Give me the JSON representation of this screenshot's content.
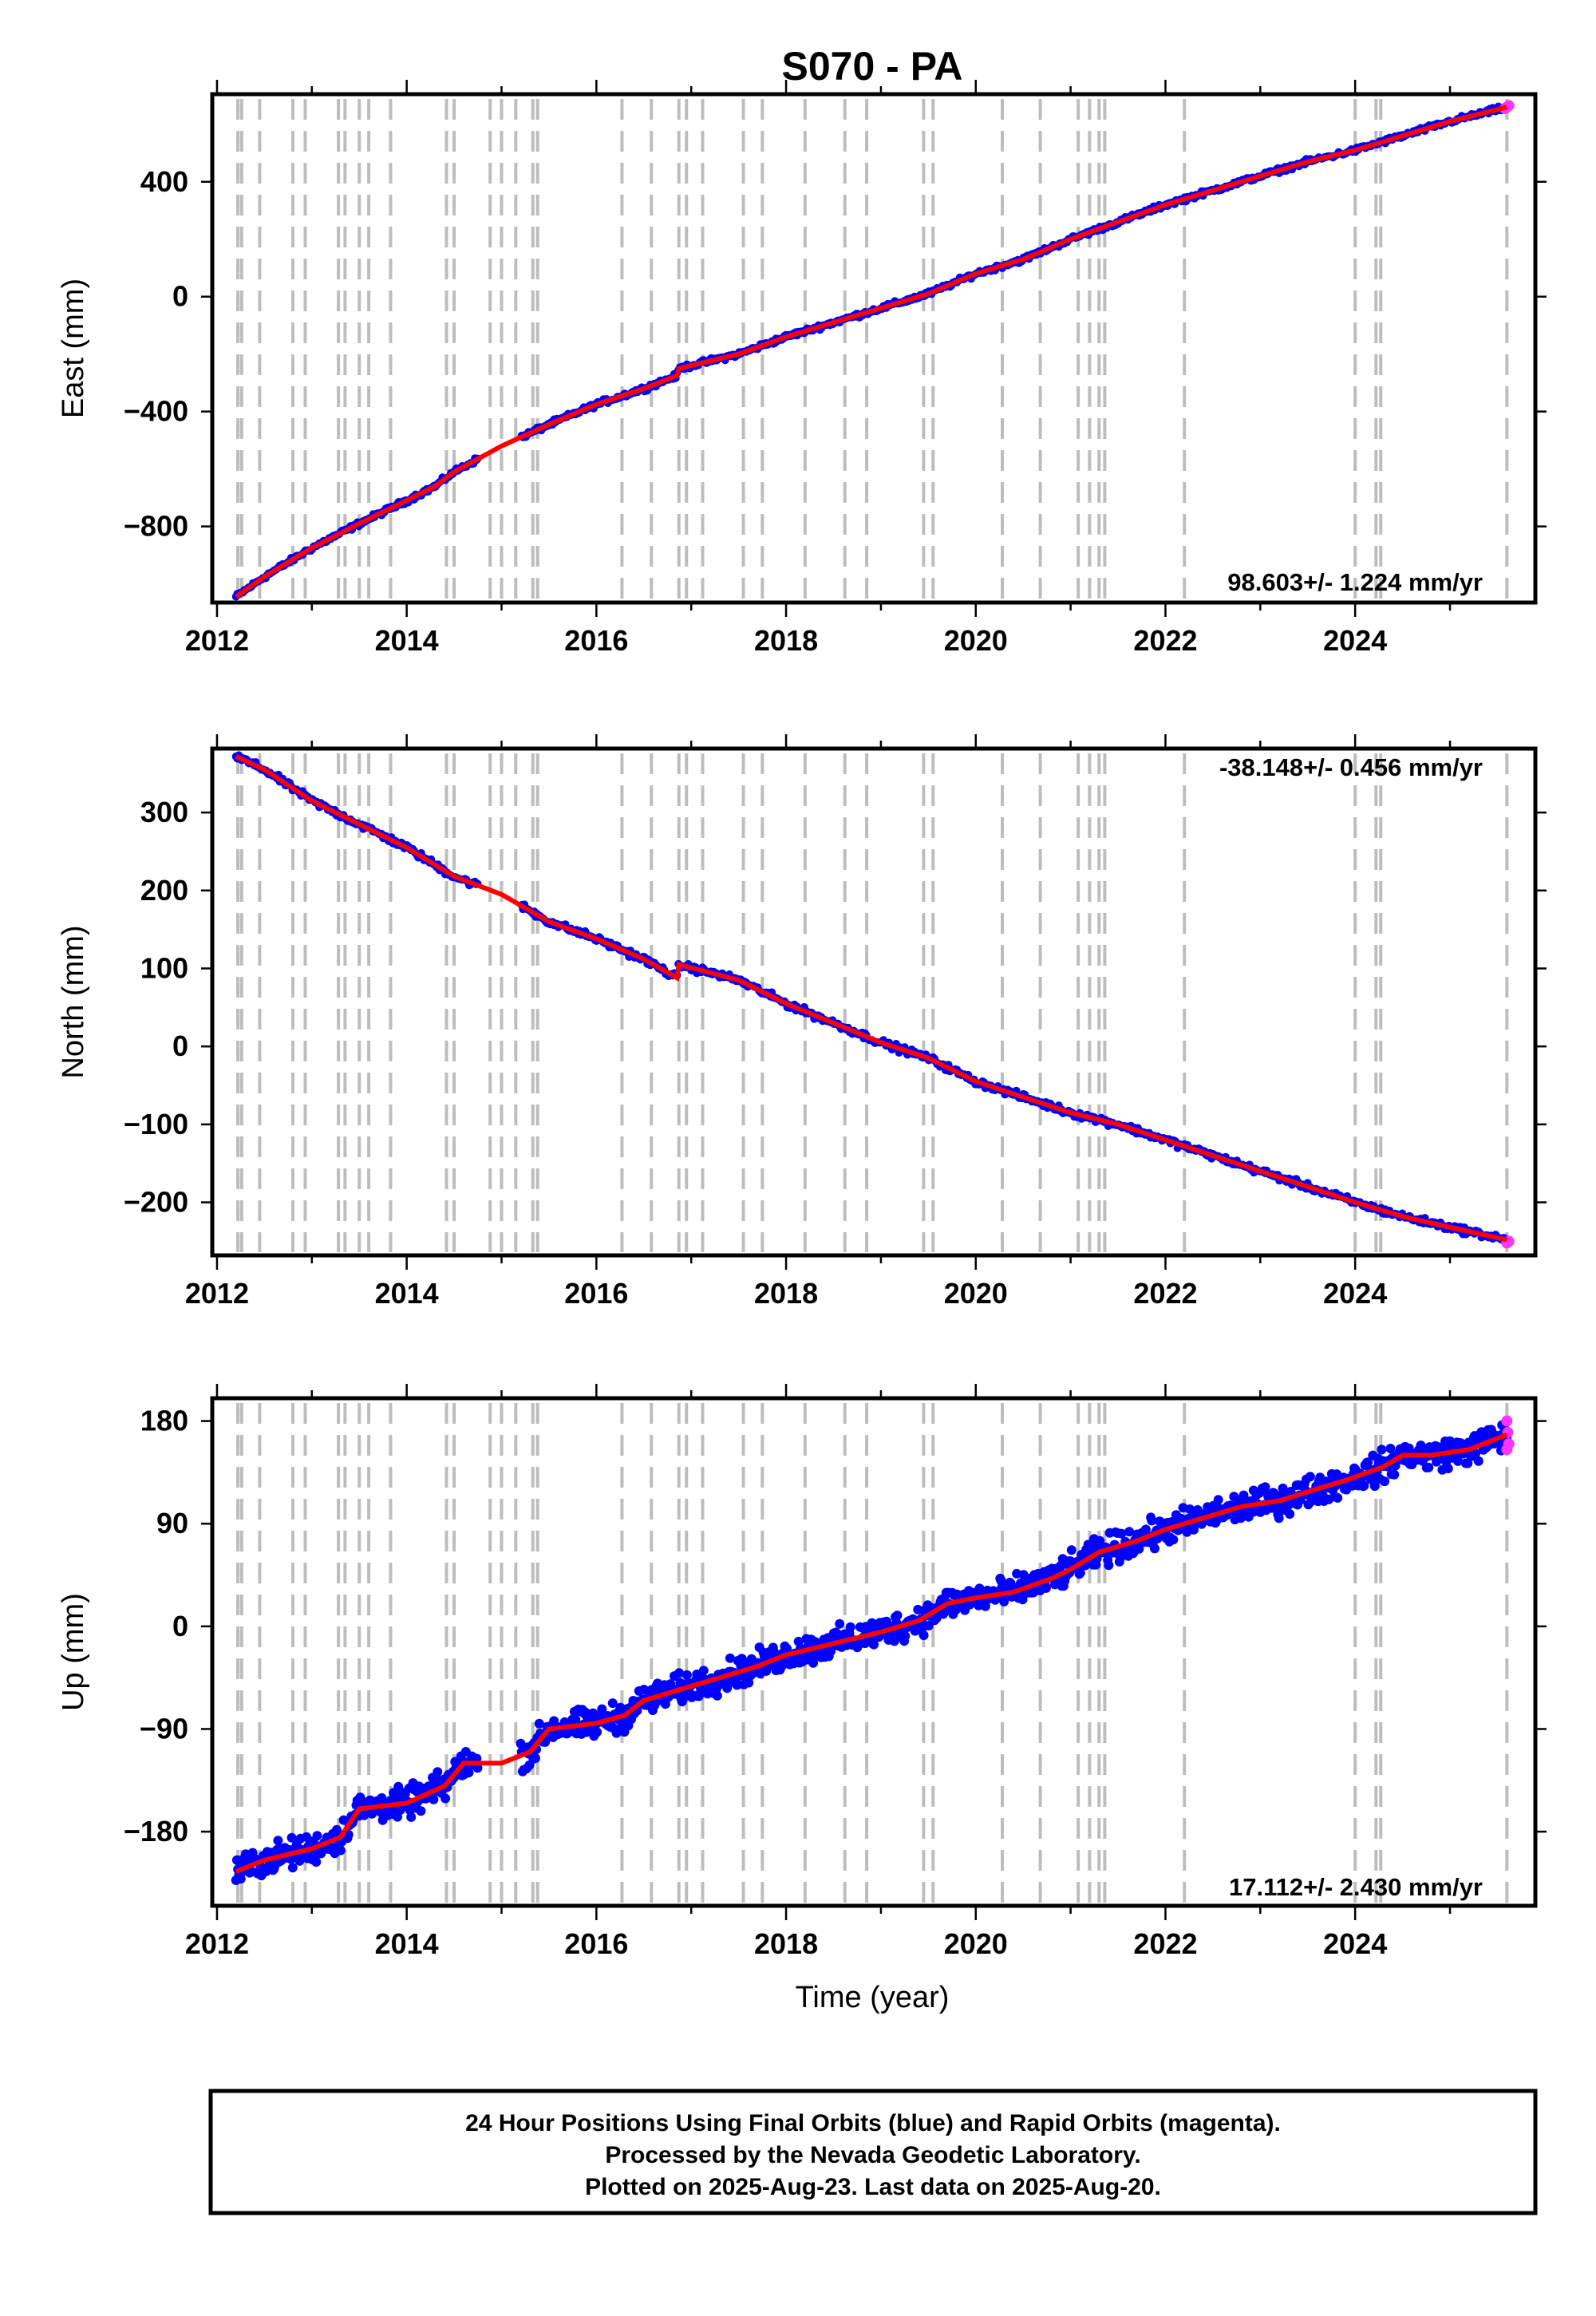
{
  "title": "S070 - PA",
  "x_axis_label": "Time (year)",
  "footer": {
    "line1": "24 Hour Positions Using Final Orbits (blue) and Rapid Orbits (magenta).",
    "line2": "Processed by the Nevada Geodetic Laboratory.",
    "line3": "Plotted on 2025-Aug-23. Last data on 2025-Aug-20."
  },
  "colors": {
    "final": "#0000ff",
    "rapid": "#ff33ff",
    "model": "#ff0000",
    "events": "#bdbdbd"
  },
  "chart_data": [
    {
      "type": "scatter",
      "name": "east",
      "ylabel": "East (mm)",
      "rate_label": "98.603+/- 1.224 mm/yr",
      "xlim": [
        2011.95,
        2025.9
      ],
      "ylim": [
        -1065,
        705
      ],
      "yticks": [
        400,
        0,
        -400,
        -800
      ],
      "ytick_labels": [
        "400",
        "0",
        "−400",
        "−800"
      ],
      "xticks": [
        2012,
        2014,
        2016,
        2018,
        2020,
        2022,
        2024
      ],
      "xtick_labels": [
        "2012",
        "2014",
        "2016",
        "2018",
        "2020",
        "2022",
        "2024"
      ],
      "trend_x": [
        2012.2,
        2012.5,
        2013.0,
        2013.5,
        2014.0,
        2014.3,
        2014.5,
        2015.0,
        2015.5,
        2016.0,
        2016.5,
        2016.85,
        2016.87,
        2017.5,
        2018.0,
        2018.5,
        2019.0,
        2019.5,
        2020.0,
        2020.5,
        2021.0,
        2021.5,
        2022.0,
        2022.5,
        2023.0,
        2023.5,
        2024.0,
        2024.5,
        2025.0,
        2025.6
      ],
      "trend_y": [
        -1045,
        -975,
        -875,
        -790,
        -710,
        -660,
        -610,
        -520,
        -445,
        -375,
        -320,
        -275,
        -250,
        -200,
        -140,
        -90,
        -40,
        10,
        80,
        130,
        200,
        260,
        320,
        370,
        420,
        470,
        510,
        560,
        610,
        660
      ],
      "noise": 6,
      "rapid": [
        [
          2025.58,
          655
        ],
        [
          2025.6,
          660
        ],
        [
          2025.62,
          665
        ]
      ]
    },
    {
      "type": "scatter",
      "name": "north",
      "ylabel": "North (mm)",
      "rate_label": "-38.148+/- 0.456 mm/yr",
      "xlim": [
        2011.95,
        2025.9
      ],
      "ylim": [
        -268,
        382
      ],
      "yticks": [
        300,
        200,
        100,
        0,
        -100,
        -200
      ],
      "ytick_labels": [
        "300",
        "200",
        "100",
        "0",
        "−100",
        "−200"
      ],
      "xticks": [
        2012,
        2014,
        2016,
        2018,
        2020,
        2022,
        2024
      ],
      "xtick_labels": [
        "2012",
        "2014",
        "2016",
        "2018",
        "2020",
        "2022",
        "2024"
      ],
      "trend_x": [
        2012.2,
        2012.5,
        2013.0,
        2013.5,
        2014.0,
        2014.5,
        2015.0,
        2015.5,
        2016.0,
        2016.5,
        2016.85,
        2016.87,
        2017.5,
        2018.0,
        2018.5,
        2019.0,
        2019.5,
        2020.0,
        2020.5,
        2021.0,
        2021.5,
        2022.0,
        2022.5,
        2023.0,
        2023.5,
        2024.0,
        2024.5,
        2025.0,
        2025.6
      ],
      "trend_y": [
        372,
        355,
        315,
        285,
        255,
        218,
        195,
        160,
        138,
        112,
        88,
        105,
        85,
        55,
        30,
        5,
        -15,
        -45,
        -65,
        -85,
        -100,
        -120,
        -140,
        -160,
        -180,
        -200,
        -218,
        -232,
        -248
      ],
      "noise": 3,
      "rapid": [
        [
          2025.6,
          -252
        ],
        [
          2025.62,
          -250
        ]
      ]
    },
    {
      "type": "scatter",
      "name": "up",
      "ylabel": "Up (mm)",
      "rate_label": "17.112+/- 2.430 mm/yr",
      "xlim": [
        2011.95,
        2025.9
      ],
      "ylim": [
        -245,
        200
      ],
      "yticks": [
        180,
        90,
        0,
        -90,
        -180
      ],
      "ytick_labels": [
        "180",
        "90",
        "0",
        "−90",
        "−180"
      ],
      "xticks": [
        2012,
        2014,
        2016,
        2018,
        2020,
        2022,
        2024
      ],
      "xtick_labels": [
        "2012",
        "2014",
        "2016",
        "2018",
        "2020",
        "2022",
        "2024"
      ],
      "trend_x": [
        2012.2,
        2012.5,
        2013.0,
        2013.3,
        2013.5,
        2014.0,
        2014.4,
        2014.6,
        2015.0,
        2015.3,
        2015.5,
        2016.0,
        2016.3,
        2016.5,
        2016.9,
        2017.3,
        2017.7,
        2018.0,
        2018.5,
        2019.0,
        2019.4,
        2019.7,
        2020.0,
        2020.4,
        2020.8,
        2021.0,
        2021.3,
        2021.7,
        2022.0,
        2022.4,
        2022.8,
        2023.2,
        2023.5,
        2023.9,
        2024.3,
        2024.5,
        2024.8,
        2025.2,
        2025.6
      ],
      "trend_y": [
        -215,
        -205,
        -195,
        -185,
        -160,
        -155,
        -140,
        -120,
        -120,
        -110,
        -90,
        -85,
        -78,
        -65,
        -55,
        -45,
        -35,
        -25,
        -15,
        -5,
        5,
        20,
        25,
        30,
        42,
        50,
        65,
        75,
        85,
        95,
        105,
        110,
        118,
        128,
        140,
        150,
        150,
        155,
        168
      ],
      "noise": 9,
      "rapid": [
        [
          2025.6,
          180
        ],
        [
          2025.61,
          170
        ],
        [
          2025.62,
          160
        ],
        [
          2025.6,
          155
        ]
      ]
    }
  ],
  "event_years": [
    2012.22,
    2012.26,
    2012.45,
    2012.8,
    2012.93,
    2013.28,
    2013.35,
    2013.5,
    2013.6,
    2013.83,
    2014.42,
    2014.5,
    2014.88,
    2015.0,
    2015.15,
    2015.33,
    2015.38,
    2016.27,
    2016.58,
    2016.87,
    2016.95,
    2017.12,
    2017.55,
    2017.75,
    2018.2,
    2018.62,
    2018.85,
    2019.45,
    2019.55,
    2020.28,
    2020.68,
    2021.08,
    2021.2,
    2021.3,
    2021.36,
    2022.2,
    2024.0,
    2024.22,
    2024.27,
    2025.6
  ]
}
